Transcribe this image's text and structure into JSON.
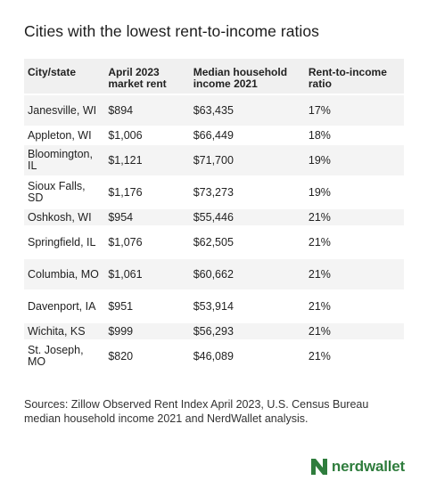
{
  "title": "Cities with the lowest rent-to-income ratios",
  "table": {
    "headers": [
      "City/state",
      "April 2023 market rent",
      "Median household income 2021",
      "Rent-to-income ratio"
    ],
    "rows": [
      {
        "city": "Janesville, WI",
        "rent": "$894",
        "income": "$63,435",
        "ratio": "17%"
      },
      {
        "city": "Appleton, WI",
        "rent": "$1,006",
        "income": "$66,449",
        "ratio": "18%"
      },
      {
        "city": "Bloomington, IL",
        "rent": "$1,121",
        "income": "$71,700",
        "ratio": "19%"
      },
      {
        "city": "Sioux Falls, SD",
        "rent": "$1,176",
        "income": "$73,273",
        "ratio": "19%"
      },
      {
        "city": "Oshkosh, WI",
        "rent": "$954",
        "income": "$55,446",
        "ratio": "21%"
      },
      {
        "city": "Springfield, IL",
        "rent": "$1,076",
        "income": "$62,505",
        "ratio": "21%"
      },
      {
        "city": "Columbia, MO",
        "rent": "$1,061",
        "income": "$60,662",
        "ratio": "21%"
      },
      {
        "city": "Davenport, IA",
        "rent": "$951",
        "income": "$53,914",
        "ratio": "21%"
      },
      {
        "city": "Wichita, KS",
        "rent": "$999",
        "income": "$56,293",
        "ratio": "21%"
      },
      {
        "city": "St. Joseph, MO",
        "rent": "$820",
        "income": "$46,089",
        "ratio": "21%"
      }
    ]
  },
  "sources": "Sources: Zillow Observed Rent Index April 2023, U.S. Census Bureau median household income 2021 and NerdWallet analysis.",
  "logo": {
    "text": "nerdwallet",
    "icon": "nerdwallet-n-logo",
    "color": "#2f7d3d"
  }
}
